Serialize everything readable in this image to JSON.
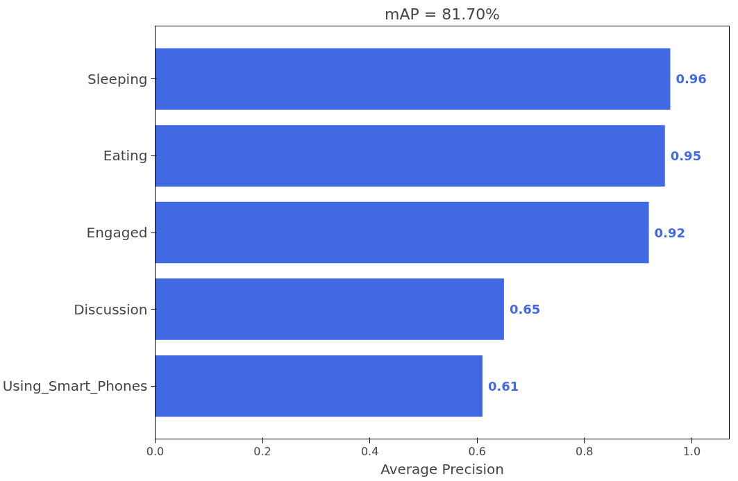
{
  "chart_data": {
    "type": "bar",
    "orientation": "horizontal",
    "title": "mAP = 81.70%",
    "xlabel": "Average Precision",
    "categories": [
      "Sleeping",
      "Eating",
      "Engaged",
      "Discussion",
      "Using_Smart_Phones"
    ],
    "values": [
      0.96,
      0.95,
      0.92,
      0.65,
      0.61
    ],
    "color": "#4169e1",
    "data_labels": true,
    "xlim": [
      0,
      1.07
    ],
    "xticks": [
      {
        "value": 0,
        "label": "0.0"
      },
      {
        "value": 0.2,
        "label": "0.2"
      },
      {
        "value": 0.4,
        "label": "0.4"
      },
      {
        "value": 0.6,
        "label": "0.6"
      },
      {
        "value": 0.8,
        "label": "0.8"
      },
      {
        "value": 1,
        "label": "1.0"
      }
    ],
    "grid": false
  }
}
